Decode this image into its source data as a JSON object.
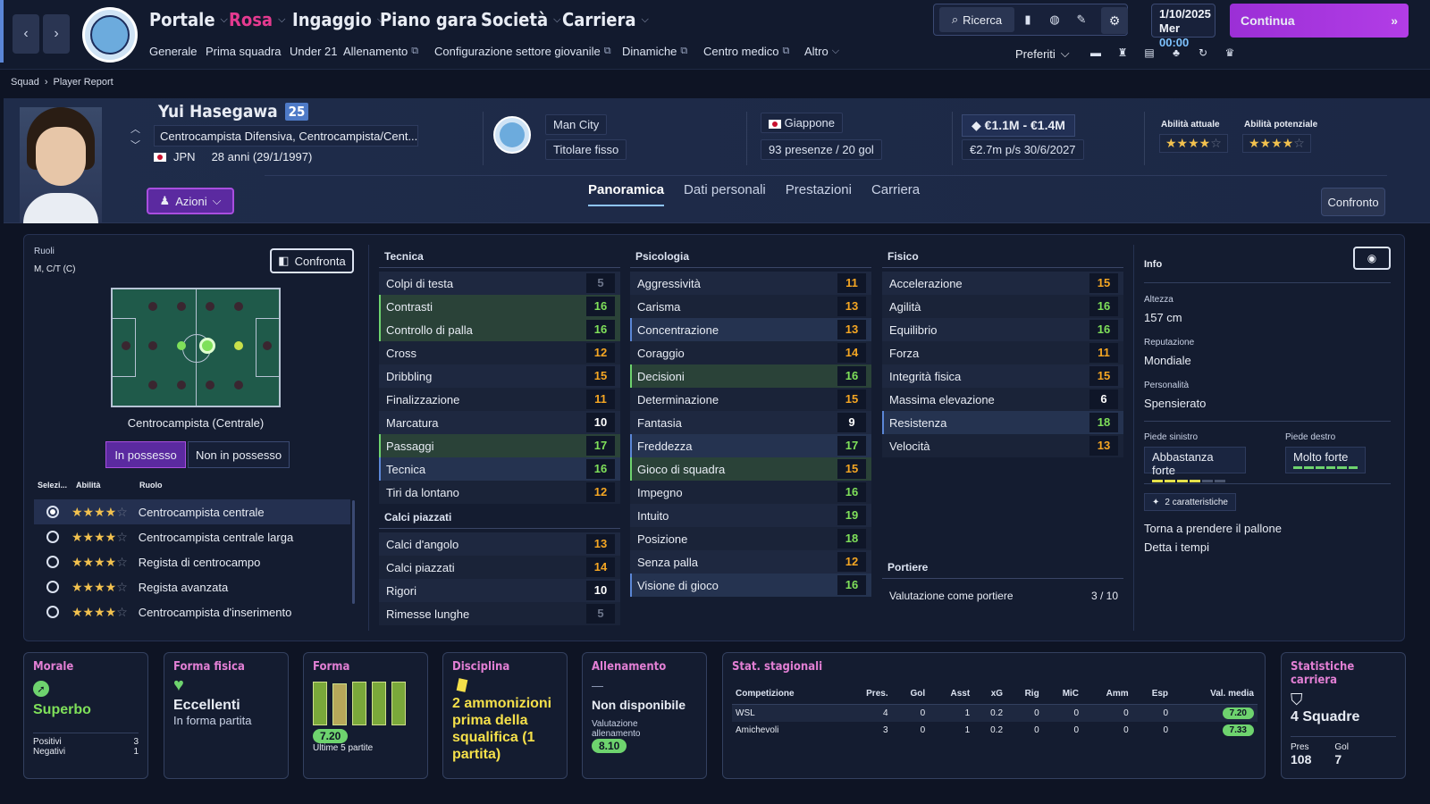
{
  "nav": {
    "menus": [
      "Portale",
      "Rosa",
      "Ingaggio",
      "Piano gara",
      "Società",
      "Carriera"
    ],
    "active_menu": "Rosa",
    "submenu": [
      "Generale",
      "Prima squadra",
      "Under 21",
      "Allenamento",
      "Configurazione settore giovanile",
      "Dinamiche",
      "Centro medico",
      "Altro"
    ],
    "search_label": "Ricerca",
    "date_line1": "1/10/2025",
    "date_day": "Mer",
    "date_time": "00:00",
    "continue_label": "Continua",
    "favorites_label": "Preferiti"
  },
  "breadcrumb": [
    "Squad",
    "Player Report"
  ],
  "player": {
    "name": "Yui Hasegawa",
    "number": "25",
    "positions": "Centrocampista Difensiva, Centrocampista/Cent...",
    "nationality_code": "JPN",
    "age": "28 anni (29/1/1997)",
    "actions_label": "Azioni",
    "club": "Man City",
    "squad_status": "Titolare fisso",
    "national_team": "Giappone",
    "caps": "93 presenze / 20 gol",
    "value": "€1.1M - €1.4M",
    "wage": "€2.7m p/s 30/6/2027",
    "current_ability_label": "Abilità attuale",
    "potential_ability_label": "Abilità potenziale",
    "current_ability_stars": 4,
    "potential_ability_stars": 4
  },
  "tabs": [
    "Panoramica",
    "Dati personali",
    "Prestazioni",
    "Carriera"
  ],
  "active_tab": "Panoramica",
  "compare_label": "Confronto",
  "roles_panel": {
    "title": "Ruoli",
    "positions_short": "M, C/T (C)",
    "compare_label": "Confronta",
    "pitch_caption": "Centrocampista (Centrale)",
    "in_possession": "In possesso",
    "out_possession": "Non in possesso",
    "col_select": "Selezi...",
    "col_ability": "Abilità",
    "col_role": "Ruolo",
    "roles": [
      {
        "name": "Centrocampista centrale",
        "selected": true,
        "stars": 4
      },
      {
        "name": "Centrocampista centrale larga",
        "selected": false,
        "stars": 4
      },
      {
        "name": "Regista di centrocampo",
        "selected": false,
        "stars": 4
      },
      {
        "name": "Regista avanzata",
        "selected": false,
        "stars": 4
      },
      {
        "name": "Centrocampista d'inserimento",
        "selected": false,
        "stars": 4
      }
    ]
  },
  "technical": {
    "title": "Tecnica",
    "items": [
      {
        "name": "Colpi di testa",
        "value": 5,
        "hl": ""
      },
      {
        "name": "Contrasti",
        "value": 16,
        "hl": "g"
      },
      {
        "name": "Controllo di palla",
        "value": 16,
        "hl": "g"
      },
      {
        "name": "Cross",
        "value": 12,
        "hl": ""
      },
      {
        "name": "Dribbling",
        "value": 15,
        "hl": ""
      },
      {
        "name": "Finalizzazione",
        "value": 11,
        "hl": ""
      },
      {
        "name": "Marcatura",
        "value": 10,
        "hl": ""
      },
      {
        "name": "Passaggi",
        "value": 17,
        "hl": "g"
      },
      {
        "name": "Tecnica",
        "value": 16,
        "hl": "b"
      },
      {
        "name": "Tiri da lontano",
        "value": 12,
        "hl": ""
      }
    ],
    "set_pieces_title": "Calci piazzati",
    "set_pieces": [
      {
        "name": "Calci d'angolo",
        "value": 13,
        "hl": ""
      },
      {
        "name": "Calci piazzati",
        "value": 14,
        "hl": ""
      },
      {
        "name": "Rigori",
        "value": 10,
        "hl": ""
      },
      {
        "name": "Rimesse lunghe",
        "value": 5,
        "hl": ""
      }
    ]
  },
  "mental": {
    "title": "Psicologia",
    "items": [
      {
        "name": "Aggressività",
        "value": 11,
        "hl": ""
      },
      {
        "name": "Carisma",
        "value": 13,
        "hl": ""
      },
      {
        "name": "Concentrazione",
        "value": 13,
        "hl": "b"
      },
      {
        "name": "Coraggio",
        "value": 14,
        "hl": ""
      },
      {
        "name": "Decisioni",
        "value": 16,
        "hl": "g"
      },
      {
        "name": "Determinazione",
        "value": 15,
        "hl": ""
      },
      {
        "name": "Fantasia",
        "value": 9,
        "hl": ""
      },
      {
        "name": "Freddezza",
        "value": 17,
        "hl": "b"
      },
      {
        "name": "Gioco di squadra",
        "value": 15,
        "hl": "g"
      },
      {
        "name": "Impegno",
        "value": 16,
        "hl": ""
      },
      {
        "name": "Intuito",
        "value": 19,
        "hl": ""
      },
      {
        "name": "Posizione",
        "value": 18,
        "hl": ""
      },
      {
        "name": "Senza palla",
        "value": 12,
        "hl": ""
      },
      {
        "name": "Visione di gioco",
        "value": 16,
        "hl": "b"
      }
    ]
  },
  "physical": {
    "title": "Fisico",
    "items": [
      {
        "name": "Accelerazione",
        "value": 15,
        "hl": ""
      },
      {
        "name": "Agilità",
        "value": 16,
        "hl": ""
      },
      {
        "name": "Equilibrio",
        "value": 16,
        "hl": ""
      },
      {
        "name": "Forza",
        "value": 11,
        "hl": ""
      },
      {
        "name": "Integrità fisica",
        "value": 15,
        "hl": ""
      },
      {
        "name": "Massima elevazione",
        "value": 6,
        "hl": ""
      },
      {
        "name": "Resistenza",
        "value": 18,
        "hl": "b"
      },
      {
        "name": "Velocità",
        "value": 13,
        "hl": ""
      }
    ],
    "gk_title": "Portiere",
    "gk_label": "Valutazione come portiere",
    "gk_value": "3 / 10"
  },
  "info": {
    "title": "Info",
    "height_label": "Altezza",
    "height": "157 cm",
    "reputation_label": "Reputazione",
    "reputation": "Mondiale",
    "personality_label": "Personalità",
    "personality": "Spensierato",
    "left_foot_label": "Piede sinistro",
    "left_foot": "Abbastanza forte",
    "left_foot_level": 4,
    "right_foot_label": "Piede destro",
    "right_foot": "Molto forte",
    "right_foot_level": 6,
    "traits_label": "2 caratteristiche",
    "traits": [
      "Torna a prendere il pallone",
      "Detta i tempi"
    ]
  },
  "cards": {
    "morale": {
      "title": "Morale",
      "value": "Superbo",
      "pos_label": "Positivi",
      "pos": "3",
      "neg_label": "Negativi",
      "neg": "1"
    },
    "fitness": {
      "title": "Forma fisica",
      "value": "Eccellenti",
      "sub": "In forma partita"
    },
    "form": {
      "title": "Forma",
      "rating": "7.20",
      "sub": "Ultime 5 partite",
      "bars": [
        0.95,
        0.9,
        0.95,
        0.95,
        0.95
      ]
    },
    "discipline": {
      "title": "Disciplina",
      "value": "2 ammonizioni prima della squalifica (1 partita)"
    },
    "training": {
      "title": "Allenamento",
      "dash": "—",
      "value": "Non disponibile",
      "sub": "Valutazione allenamento",
      "rating": "8.10"
    },
    "season": {
      "title": "Stat. stagionali",
      "headers": [
        "Competizione",
        "Pres.",
        "Gol",
        "Asst",
        "xG",
        "Rig",
        "MiC",
        "Amm",
        "Esp",
        "Val. media"
      ],
      "rows": [
        [
          "WSL",
          "4",
          "0",
          "1",
          "0.2",
          "0",
          "0",
          "0",
          "0",
          "7.20"
        ],
        [
          "Amichevoli",
          "3",
          "0",
          "1",
          "0.2",
          "0",
          "0",
          "0",
          "0",
          "7.33"
        ]
      ]
    },
    "career": {
      "title": "Statistiche carriera",
      "value": "4 Squadre",
      "pres_label": "Pres",
      "pres": "108",
      "gol_label": "Gol",
      "gol": "7"
    }
  }
}
